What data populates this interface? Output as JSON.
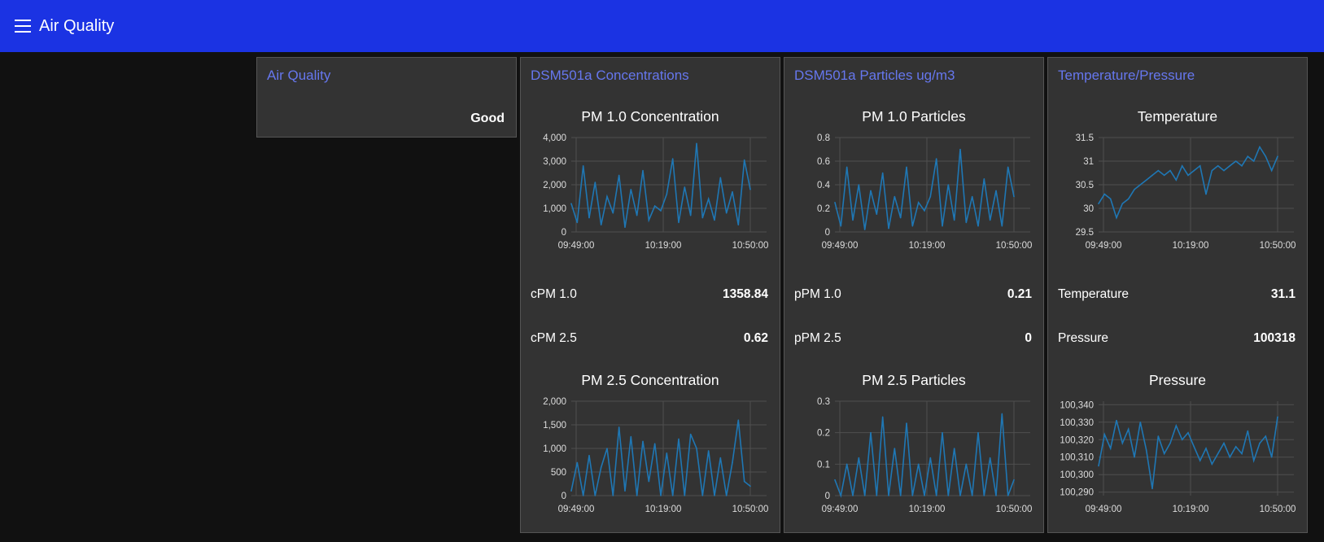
{
  "header": {
    "title": "Air Quality",
    "menu_icon": "hamburger-menu-icon"
  },
  "accent": "#6677ee",
  "line_color": "#1f77b4",
  "air_quality": {
    "title": "Air Quality",
    "value": "Good"
  },
  "concentrations": {
    "title": "DSM501a Concentrations",
    "chart1_title": "PM 1.0 Concentration",
    "chart2_title": "PM 2.5 Concentration",
    "rows": [
      {
        "label": "cPM 1.0",
        "value": "1358.84"
      },
      {
        "label": "cPM 2.5",
        "value": "0.62"
      }
    ]
  },
  "particles": {
    "title": "DSM501a Particles ug/m3",
    "chart1_title": "PM 1.0 Particles",
    "chart2_title": "PM 2.5 Particles",
    "rows": [
      {
        "label": "pPM 1.0",
        "value": "0.21"
      },
      {
        "label": "pPM 2.5",
        "value": "0"
      }
    ]
  },
  "environment": {
    "title": "Temperature/Pressure",
    "chart1_title": "Temperature",
    "chart2_title": "Pressure",
    "rows": [
      {
        "label": "Temperature",
        "value": "31.1"
      },
      {
        "label": "Pressure",
        "value": "100318"
      }
    ]
  },
  "chart_data": [
    {
      "id": "pm10c",
      "type": "line",
      "title": "PM 1.0 Concentration",
      "x_ticks": [
        "09:49:00",
        "10:19:00",
        "10:50:00"
      ],
      "y_ticks": [
        "0",
        "1,000",
        "2,000",
        "3,000",
        "4,000"
      ],
      "ylim": [
        0,
        4000
      ],
      "x": [
        0,
        2,
        4,
        6,
        8,
        10,
        12,
        14,
        16,
        18,
        20,
        22,
        24,
        26,
        28,
        30,
        32,
        34,
        36,
        38,
        40,
        42,
        44,
        46,
        48,
        50,
        52,
        54,
        56,
        58,
        60
      ],
      "y": [
        1200,
        400,
        2800,
        600,
        2100,
        300,
        1500,
        800,
        2400,
        200,
        1800,
        700,
        2600,
        500,
        1100,
        900,
        1600,
        3100,
        400,
        1900,
        700,
        3750,
        600,
        1400,
        500,
        2300,
        800,
        1700,
        300,
        3050,
        1800
      ]
    },
    {
      "id": "pm25c",
      "type": "line",
      "title": "PM 2.5 Concentration",
      "x_ticks": [
        "09:49:00",
        "10:19:00",
        "10:50:00"
      ],
      "y_ticks": [
        "0",
        "500",
        "1,000",
        "1,500",
        "2,000"
      ],
      "ylim": [
        0,
        2000
      ],
      "x": [
        0,
        2,
        4,
        6,
        8,
        10,
        12,
        14,
        16,
        18,
        20,
        22,
        24,
        26,
        28,
        30,
        32,
        34,
        36,
        38,
        40,
        42,
        44,
        46,
        48,
        50,
        52,
        54,
        56,
        58,
        60
      ],
      "y": [
        100,
        700,
        0,
        850,
        0,
        600,
        1000,
        0,
        1450,
        100,
        1250,
        0,
        1150,
        300,
        1100,
        0,
        900,
        0,
        1200,
        0,
        1300,
        1000,
        0,
        950,
        0,
        800,
        0,
        700,
        1600,
        300,
        200
      ]
    },
    {
      "id": "pm10p",
      "type": "line",
      "title": "PM 1.0 Particles",
      "x_ticks": [
        "09:49:00",
        "10:19:00",
        "10:50:00"
      ],
      "y_ticks": [
        "0",
        "0.2",
        "0.4",
        "0.6",
        "0.8"
      ],
      "ylim": [
        0,
        0.8
      ],
      "x": [
        0,
        2,
        4,
        6,
        8,
        10,
        12,
        14,
        16,
        18,
        20,
        22,
        24,
        26,
        28,
        30,
        32,
        34,
        36,
        38,
        40,
        42,
        44,
        46,
        48,
        50,
        52,
        54,
        56,
        58,
        60
      ],
      "y": [
        0.25,
        0.05,
        0.55,
        0.1,
        0.4,
        0.02,
        0.35,
        0.15,
        0.5,
        0.03,
        0.3,
        0.12,
        0.55,
        0.05,
        0.25,
        0.18,
        0.3,
        0.62,
        0.05,
        0.4,
        0.1,
        0.7,
        0.08,
        0.3,
        0.05,
        0.45,
        0.1,
        0.35,
        0.05,
        0.55,
        0.3
      ]
    },
    {
      "id": "pm25p",
      "type": "line",
      "title": "PM 2.5 Particles",
      "x_ticks": [
        "09:49:00",
        "10:19:00",
        "10:50:00"
      ],
      "y_ticks": [
        "0",
        "0.1",
        "0.2",
        "0.3"
      ],
      "ylim": [
        0,
        0.3
      ],
      "x": [
        0,
        2,
        4,
        6,
        8,
        10,
        12,
        14,
        16,
        18,
        20,
        22,
        24,
        26,
        28,
        30,
        32,
        34,
        36,
        38,
        40,
        42,
        44,
        46,
        48,
        50,
        52,
        54,
        56,
        58,
        60
      ],
      "y": [
        0.05,
        0,
        0.1,
        0,
        0.12,
        0,
        0.2,
        0,
        0.25,
        0,
        0.15,
        0,
        0.23,
        0,
        0.1,
        0,
        0.12,
        0,
        0.2,
        0,
        0.15,
        0,
        0.1,
        0,
        0.2,
        0,
        0.12,
        0,
        0.26,
        0,
        0.05
      ]
    },
    {
      "id": "temp",
      "type": "line",
      "title": "Temperature",
      "x_ticks": [
        "09:49:00",
        "10:19:00",
        "10:50:00"
      ],
      "y_ticks": [
        "29.5",
        "30",
        "30.5",
        "31",
        "31.5"
      ],
      "ylim": [
        29.5,
        31.5
      ],
      "x": [
        0,
        2,
        4,
        6,
        8,
        10,
        12,
        14,
        16,
        18,
        20,
        22,
        24,
        26,
        28,
        30,
        32,
        34,
        36,
        38,
        40,
        42,
        44,
        46,
        48,
        50,
        52,
        54,
        56,
        58,
        60
      ],
      "y": [
        30.1,
        30.3,
        30.2,
        29.8,
        30.1,
        30.2,
        30.4,
        30.5,
        30.6,
        30.7,
        30.8,
        30.7,
        30.8,
        30.6,
        30.9,
        30.7,
        30.8,
        30.9,
        30.3,
        30.8,
        30.9,
        30.8,
        30.9,
        31.0,
        30.9,
        31.1,
        31.0,
        31.3,
        31.1,
        30.8,
        31.1
      ]
    },
    {
      "id": "pressure",
      "type": "line",
      "title": "Pressure",
      "x_ticks": [
        "09:49:00",
        "10:19:00",
        "10:50:00"
      ],
      "y_ticks": [
        "100,290",
        "100,300",
        "100,310",
        "100,320",
        "100,330",
        "100,340"
      ],
      "ylim": [
        100288,
        100342
      ],
      "x": [
        0,
        2,
        4,
        6,
        8,
        10,
        12,
        14,
        16,
        18,
        20,
        22,
        24,
        26,
        28,
        30,
        32,
        34,
        36,
        38,
        40,
        42,
        44,
        46,
        48,
        50,
        52,
        54,
        56,
        58,
        60
      ],
      "y": [
        100305,
        100323,
        100315,
        100331,
        100318,
        100326,
        100310,
        100330,
        100314,
        100292,
        100322,
        100312,
        100318,
        100328,
        100320,
        100324,
        100316,
        100308,
        100315,
        100306,
        100312,
        100318,
        100310,
        100316,
        100312,
        100325,
        100308,
        100318,
        100322,
        100310,
        100333
      ]
    }
  ]
}
